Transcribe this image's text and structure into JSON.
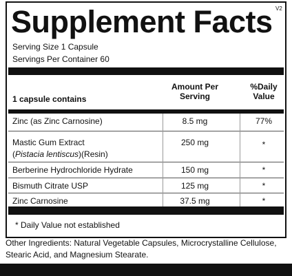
{
  "version": "V2",
  "title": "Supplement Facts",
  "serving_size": "Serving Size  1 Capsule",
  "servings_per_container": "Servings Per Container  60",
  "header": {
    "name": "1 capsule contains",
    "amount": [
      "Amount Per",
      "Serving"
    ],
    "daily_value": [
      "%Daily",
      "Value"
    ]
  },
  "rows": [
    {
      "name": [
        "Zinc (as Zinc Carnosine)"
      ],
      "amount": "8.5 mg",
      "daily_value": "77%"
    },
    {
      "name": [
        "Mastic Gum Extract",
        "(",
        "Pistacia lentiscus",
        ")(Resin)"
      ],
      "amount": "250 mg",
      "daily_value": "*"
    },
    {
      "name": [
        "Berberine Hydrochloride Hydrate"
      ],
      "amount": "150 mg",
      "daily_value": "*"
    },
    {
      "name": [
        "Bismuth Citrate USP"
      ],
      "amount": "125 mg",
      "daily_value": "*"
    },
    {
      "name": [
        "Zinc Carnosine"
      ],
      "amount": "37.5 mg",
      "daily_value": "*"
    }
  ],
  "footnote": "* Daily Value not established",
  "other_ingredients": [
    "Other Ingredients: Natural Vegetable Capsules, Microcrystalline Cellulose,",
    "Stearic Acid, and Magnesium Stearate."
  ]
}
